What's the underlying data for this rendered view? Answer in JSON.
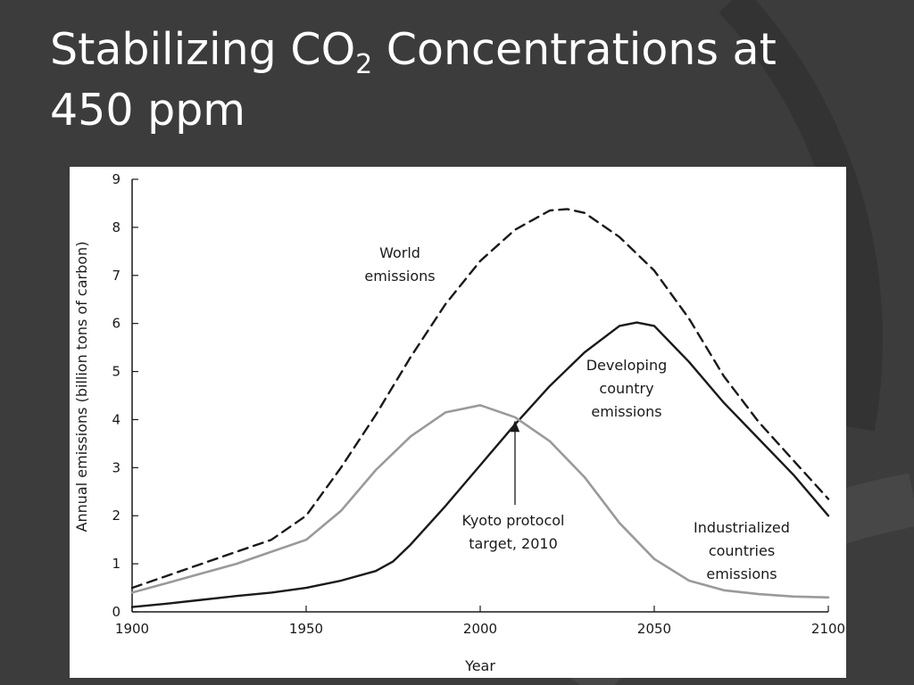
{
  "slide": {
    "title_main": "Stabilizing CO",
    "title_sub": "2",
    "title_rest": " Concentrations at 450 ppm"
  },
  "theme": {
    "background": "#3c3c3c",
    "arc": "#333333",
    "title_color": "#ffffff"
  },
  "chart_data": {
    "type": "line",
    "title": "",
    "xlabel": "Year",
    "ylabel": "Annual emissions (billion tons of carbon)",
    "xlim": [
      1900,
      2100
    ],
    "ylim": [
      0,
      9
    ],
    "xticks": [
      1900,
      1950,
      2000,
      2050,
      2100
    ],
    "yticks": [
      0,
      1,
      2,
      3,
      4,
      5,
      6,
      7,
      8,
      9
    ],
    "grid": false,
    "series": [
      {
        "key": "world",
        "style": "dashed",
        "color": "#1a1a1a",
        "points": [
          [
            1900,
            0.5
          ],
          [
            1910,
            0.75
          ],
          [
            1920,
            1.0
          ],
          [
            1930,
            1.25
          ],
          [
            1940,
            1.5
          ],
          [
            1950,
            2.0
          ],
          [
            1960,
            3.0
          ],
          [
            1970,
            4.1
          ],
          [
            1980,
            5.3
          ],
          [
            1990,
            6.4
          ],
          [
            2000,
            7.3
          ],
          [
            2010,
            7.95
          ],
          [
            2020,
            8.35
          ],
          [
            2025,
            8.38
          ],
          [
            2030,
            8.3
          ],
          [
            2040,
            7.8
          ],
          [
            2050,
            7.1
          ],
          [
            2060,
            6.1
          ],
          [
            2070,
            4.9
          ],
          [
            2080,
            3.95
          ],
          [
            2090,
            3.15
          ],
          [
            2100,
            2.35
          ]
        ]
      },
      {
        "key": "developing",
        "style": "solid",
        "color": "#1a1a1a",
        "points": [
          [
            1900,
            0.1
          ],
          [
            1910,
            0.17
          ],
          [
            1920,
            0.25
          ],
          [
            1930,
            0.33
          ],
          [
            1940,
            0.4
          ],
          [
            1950,
            0.5
          ],
          [
            1960,
            0.65
          ],
          [
            1970,
            0.85
          ],
          [
            1975,
            1.05
          ],
          [
            1980,
            1.4
          ],
          [
            1990,
            2.2
          ],
          [
            2000,
            3.05
          ],
          [
            2010,
            3.9
          ],
          [
            2020,
            4.7
          ],
          [
            2030,
            5.4
          ],
          [
            2040,
            5.95
          ],
          [
            2045,
            6.02
          ],
          [
            2050,
            5.95
          ],
          [
            2060,
            5.2
          ],
          [
            2070,
            4.35
          ],
          [
            2080,
            3.6
          ],
          [
            2090,
            2.85
          ],
          [
            2100,
            2.0
          ]
        ]
      },
      {
        "key": "industrialized",
        "style": "solid",
        "color": "#9a9a9a",
        "points": [
          [
            1900,
            0.4
          ],
          [
            1910,
            0.6
          ],
          [
            1920,
            0.8
          ],
          [
            1930,
            1.0
          ],
          [
            1940,
            1.25
          ],
          [
            1950,
            1.5
          ],
          [
            1960,
            2.1
          ],
          [
            1970,
            2.95
          ],
          [
            1980,
            3.65
          ],
          [
            1990,
            4.15
          ],
          [
            2000,
            4.3
          ],
          [
            2010,
            4.05
          ],
          [
            2020,
            3.55
          ],
          [
            2030,
            2.8
          ],
          [
            2040,
            1.85
          ],
          [
            2050,
            1.1
          ],
          [
            2060,
            0.65
          ],
          [
            2070,
            0.45
          ],
          [
            2080,
            0.37
          ],
          [
            2090,
            0.32
          ],
          [
            2100,
            0.3
          ]
        ]
      }
    ],
    "annotations": {
      "world": [
        "World",
        "emissions"
      ],
      "developing": [
        "Developing",
        "country",
        "emissions"
      ],
      "industrialized": [
        "Industrialized",
        "countries",
        "emissions"
      ],
      "kyoto": [
        "Kyoto protocol",
        "target, 2010"
      ]
    },
    "kyoto_marker": {
      "x": 2010,
      "y": 4.05
    }
  }
}
